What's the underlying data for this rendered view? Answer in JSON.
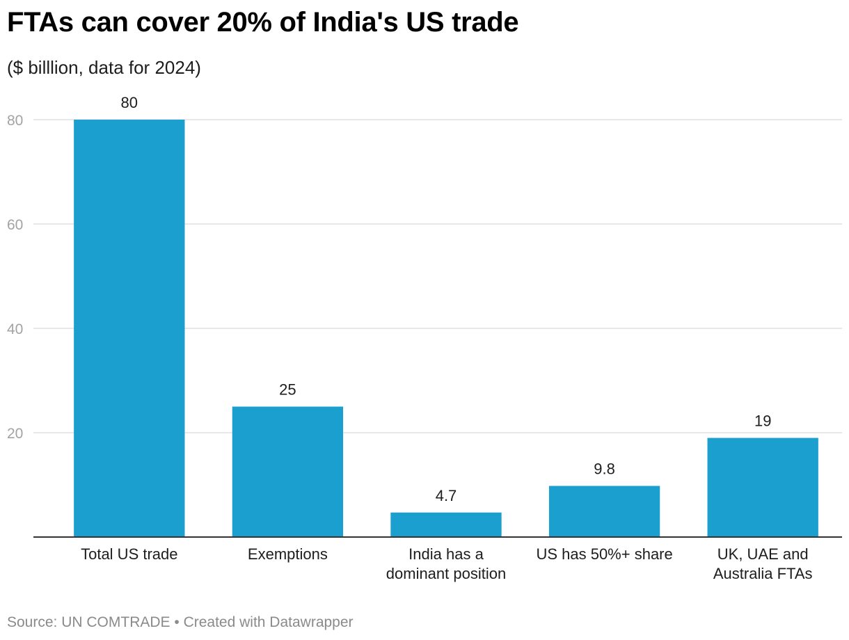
{
  "header": {
    "title": "FTAs can cover 20% of India's US trade",
    "subtitle": "($ billlion, data for 2024)"
  },
  "footer": {
    "source": "Source: UN COMTRADE",
    "separator": " • ",
    "credit": "Created with Datawrapper"
  },
  "colors": {
    "bar": "#1a9fcf",
    "grid": "#e1e1e1",
    "baseline": "#333333"
  },
  "chart_data": {
    "type": "bar",
    "title": "FTAs can cover 20% of India's US trade",
    "subtitle": "($ billlion, data for 2024)",
    "categories": [
      [
        "Total US trade"
      ],
      [
        "Exemptions"
      ],
      [
        "India has a",
        "dominant position"
      ],
      [
        "US has 50%+ share"
      ],
      [
        "UK, UAE and",
        "Australia FTAs"
      ]
    ],
    "values": [
      80,
      25,
      4.7,
      9.8,
      19
    ],
    "value_labels": [
      "80",
      "25",
      "4.7",
      "9.8",
      "19"
    ],
    "yticks": [
      20,
      40,
      60,
      80
    ],
    "ylim": [
      0,
      80
    ],
    "xlabel": "",
    "ylabel": "",
    "grid": true,
    "legend": "none"
  }
}
